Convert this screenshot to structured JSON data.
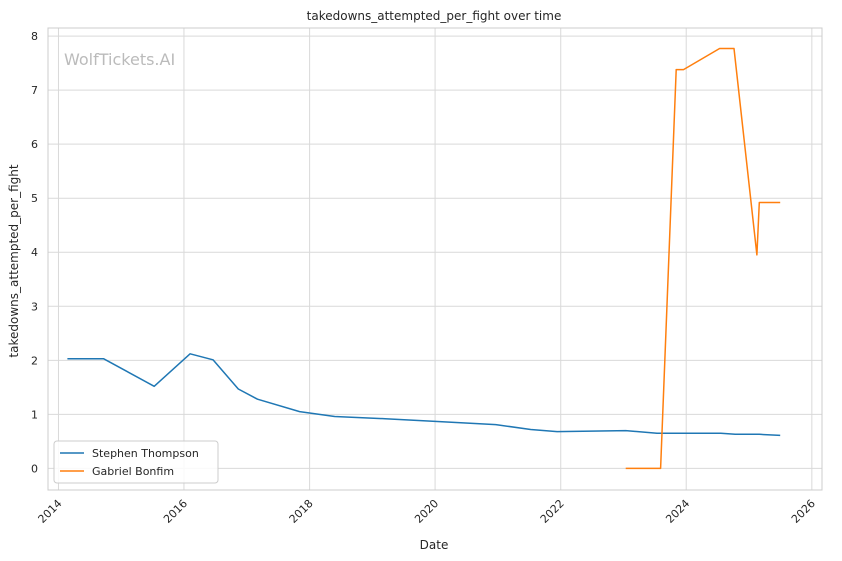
{
  "chart_data": {
    "type": "line",
    "title": "takedowns_attempted_per_fight over time",
    "xlabel": "Date",
    "ylabel": "takedowns_attempted_per_fight",
    "watermark": "WolfTickets.AI",
    "x_ticks": [
      "2014",
      "2016",
      "2018",
      "2020",
      "2022",
      "2024",
      "2026"
    ],
    "y_ticks": [
      "0",
      "1",
      "2",
      "3",
      "4",
      "5",
      "6",
      "7",
      "8"
    ],
    "xlim": [
      "2013-11-01",
      "2026-03-01"
    ],
    "ylim": [
      -0.4,
      8.15
    ],
    "grid": true,
    "legend_position": "lower-left",
    "series": [
      {
        "name": "Stephen Thompson",
        "color": "#1f77b4",
        "points": [
          [
            "2014-02-22",
            2.03
          ],
          [
            "2014-09-20",
            2.03
          ],
          [
            "2015-07-12",
            1.52
          ],
          [
            "2016-02-06",
            2.12
          ],
          [
            "2016-06-18",
            2.01
          ],
          [
            "2016-11-12",
            1.47
          ],
          [
            "2017-03-04",
            1.28
          ],
          [
            "2017-11-04",
            1.05
          ],
          [
            "2018-05-27",
            0.96
          ],
          [
            "2019-03-16",
            0.92
          ],
          [
            "2020-01-01",
            0.87
          ],
          [
            "2020-12-19",
            0.81
          ],
          [
            "2021-07-10",
            0.72
          ],
          [
            "2021-12-11",
            0.68
          ],
          [
            "2023-01-14",
            0.7
          ],
          [
            "2023-07-15",
            0.65
          ],
          [
            "2024-07-20",
            0.65
          ],
          [
            "2024-10-12",
            0.63
          ],
          [
            "2025-03-01",
            0.63
          ],
          [
            "2025-07-01",
            0.61
          ]
        ]
      },
      {
        "name": "Gabriel Bonfim",
        "color": "#ff7f0e",
        "points": [
          [
            "2023-01-14",
            0.0
          ],
          [
            "2023-08-05",
            0.0
          ],
          [
            "2023-11-04",
            7.38
          ],
          [
            "2023-12-16",
            7.38
          ],
          [
            "2024-07-13",
            7.77
          ],
          [
            "2024-10-05",
            7.77
          ],
          [
            "2025-02-15",
            3.95
          ],
          [
            "2025-03-01",
            4.92
          ],
          [
            "2025-07-01",
            4.92
          ]
        ]
      }
    ]
  }
}
